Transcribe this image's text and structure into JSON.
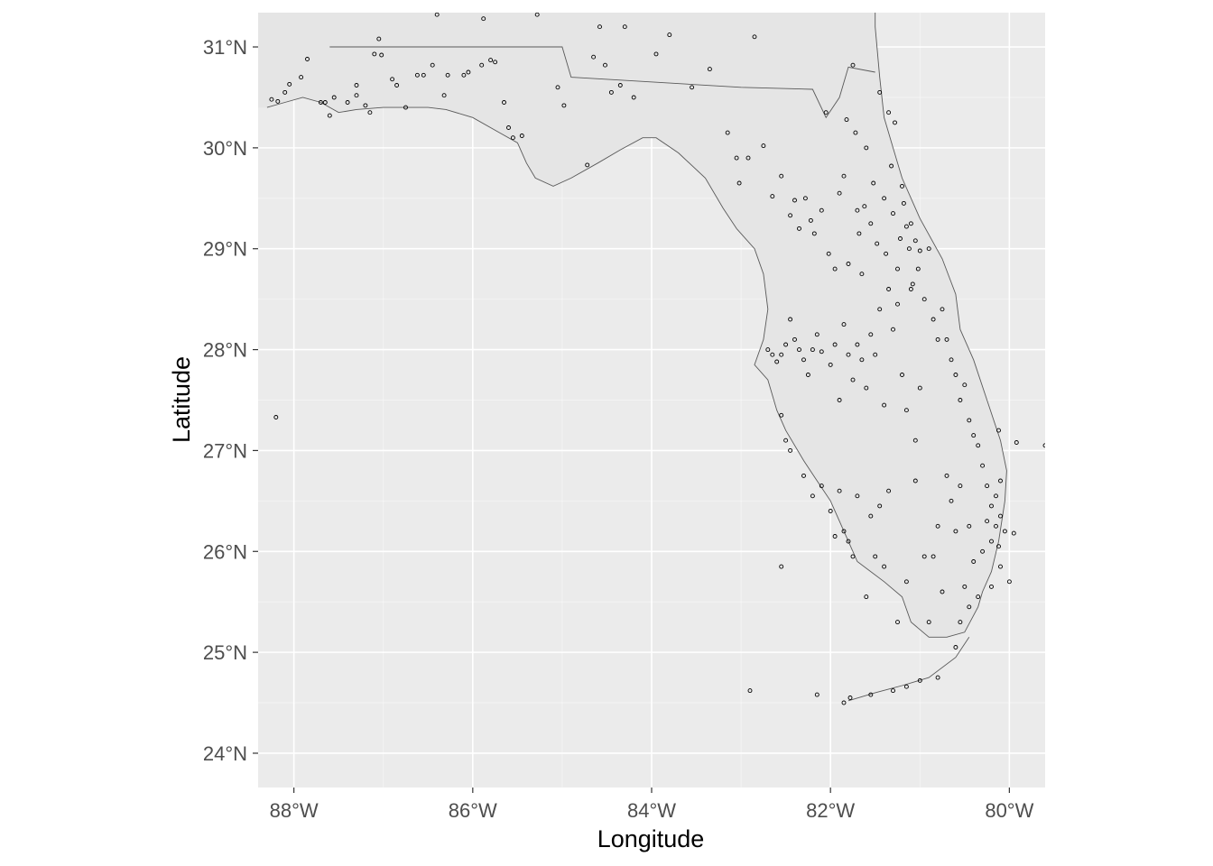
{
  "chart_data": {
    "type": "scatter",
    "title": "",
    "xlabel": "Longitude",
    "ylabel": "Latitude",
    "xlim": [
      -88.4,
      -79.6
    ],
    "ylim": [
      23.66,
      31.34
    ],
    "grid": true,
    "x_ticks": [
      {
        "value": -88,
        "label": "88°W"
      },
      {
        "value": -86,
        "label": "86°W"
      },
      {
        "value": -84,
        "label": "84°W"
      },
      {
        "value": -82,
        "label": "82°W"
      },
      {
        "value": -80,
        "label": "80°W"
      }
    ],
    "y_ticks": [
      {
        "value": 24,
        "label": "24°N"
      },
      {
        "value": 25,
        "label": "25°N"
      },
      {
        "value": 26,
        "label": "26°N"
      },
      {
        "value": 27,
        "label": "27°N"
      },
      {
        "value": 28,
        "label": "28°N"
      },
      {
        "value": 29,
        "label": "29°N"
      },
      {
        "value": 30,
        "label": "30°N"
      },
      {
        "value": 31,
        "label": "31°N"
      }
    ],
    "colors": {
      "panel": "#ebebeb",
      "grid": "#ffffff",
      "land": "#e5e5e5",
      "border": "#595959",
      "point": "#000000"
    },
    "boundaries": [
      {
        "name": "state-border-al-fl",
        "coords": [
          [
            -87.6,
            31.0
          ],
          [
            -85.0,
            31.0
          ],
          [
            -84.9,
            30.7
          ],
          [
            -83.0,
            30.6
          ],
          [
            -82.2,
            30.58
          ],
          [
            -82.05,
            30.3
          ],
          [
            -81.9,
            30.5
          ],
          [
            -81.8,
            30.8
          ],
          [
            -81.5,
            30.75
          ]
        ]
      }
    ],
    "coastlines": [
      {
        "name": "florida-coastline",
        "coords": [
          [
            -88.3,
            30.4
          ],
          [
            -88.1,
            30.45
          ],
          [
            -87.9,
            30.5
          ],
          [
            -87.7,
            30.45
          ],
          [
            -87.5,
            30.35
          ],
          [
            -87.3,
            30.38
          ],
          [
            -87.0,
            30.4
          ],
          [
            -86.5,
            30.4
          ],
          [
            -86.3,
            30.38
          ],
          [
            -86.0,
            30.3
          ],
          [
            -85.7,
            30.15
          ],
          [
            -85.5,
            30.05
          ],
          [
            -85.4,
            29.85
          ],
          [
            -85.3,
            29.7
          ],
          [
            -85.1,
            29.62
          ],
          [
            -84.9,
            29.7
          ],
          [
            -84.6,
            29.85
          ],
          [
            -84.35,
            29.98
          ],
          [
            -84.1,
            30.1
          ],
          [
            -83.95,
            30.1
          ],
          [
            -83.7,
            29.95
          ],
          [
            -83.4,
            29.7
          ],
          [
            -83.2,
            29.4
          ],
          [
            -83.05,
            29.2
          ],
          [
            -82.85,
            29.0
          ],
          [
            -82.75,
            28.75
          ],
          [
            -82.7,
            28.4
          ],
          [
            -82.75,
            28.1
          ],
          [
            -82.85,
            27.85
          ],
          [
            -82.7,
            27.7
          ],
          [
            -82.6,
            27.4
          ],
          [
            -82.5,
            27.2
          ],
          [
            -82.3,
            26.9
          ],
          [
            -82.15,
            26.7
          ],
          [
            -82.0,
            26.5
          ],
          [
            -81.9,
            26.3
          ],
          [
            -81.8,
            26.1
          ],
          [
            -81.7,
            25.9
          ],
          [
            -81.4,
            25.7
          ],
          [
            -81.2,
            25.55
          ],
          [
            -81.1,
            25.3
          ],
          [
            -80.9,
            25.15
          ],
          [
            -80.7,
            25.15
          ],
          [
            -80.5,
            25.2
          ],
          [
            -80.35,
            25.45
          ],
          [
            -80.3,
            25.6
          ],
          [
            -80.2,
            25.8
          ],
          [
            -80.12,
            26.1
          ],
          [
            -80.05,
            26.5
          ],
          [
            -80.03,
            26.8
          ],
          [
            -80.1,
            27.1
          ],
          [
            -80.25,
            27.5
          ],
          [
            -80.4,
            27.9
          ],
          [
            -80.55,
            28.2
          ],
          [
            -80.6,
            28.55
          ],
          [
            -80.75,
            28.9
          ],
          [
            -81.0,
            29.3
          ],
          [
            -81.2,
            29.7
          ],
          [
            -81.3,
            30.0
          ],
          [
            -81.4,
            30.3
          ],
          [
            -81.45,
            30.7
          ],
          [
            -81.5,
            31.2
          ],
          [
            -81.5,
            31.34
          ]
        ]
      },
      {
        "name": "florida-keys",
        "coords": [
          [
            -80.45,
            25.15
          ],
          [
            -80.6,
            24.95
          ],
          [
            -80.9,
            24.75
          ],
          [
            -81.2,
            24.67
          ],
          [
            -81.5,
            24.6
          ],
          [
            -81.8,
            24.52
          ]
        ]
      }
    ],
    "points": [
      [
        -88.25,
        30.48
      ],
      [
        -88.18,
        30.46
      ],
      [
        -88.1,
        30.55
      ],
      [
        -88.05,
        30.63
      ],
      [
        -87.92,
        30.7
      ],
      [
        -87.85,
        30.88
      ],
      [
        -87.7,
        30.45
      ],
      [
        -87.65,
        30.45
      ],
      [
        -87.6,
        30.32
      ],
      [
        -87.55,
        30.5
      ],
      [
        -87.4,
        30.45
      ],
      [
        -87.3,
        30.62
      ],
      [
        -87.3,
        30.52
      ],
      [
        -87.2,
        30.42
      ],
      [
        -87.15,
        30.35
      ],
      [
        -87.1,
        30.93
      ],
      [
        -87.05,
        31.08
      ],
      [
        -87.02,
        30.92
      ],
      [
        -86.9,
        30.68
      ],
      [
        -86.85,
        30.62
      ],
      [
        -86.75,
        30.4
      ],
      [
        -86.62,
        30.72
      ],
      [
        -86.55,
        30.72
      ],
      [
        -86.4,
        31.32
      ],
      [
        -86.45,
        30.82
      ],
      [
        -86.32,
        30.52
      ],
      [
        -86.28,
        30.72
      ],
      [
        -86.1,
        30.72
      ],
      [
        -86.05,
        30.75
      ],
      [
        -85.9,
        30.82
      ],
      [
        -85.88,
        31.28
      ],
      [
        -85.8,
        30.87
      ],
      [
        -85.75,
        30.85
      ],
      [
        -85.65,
        30.45
      ],
      [
        -85.6,
        30.2
      ],
      [
        -85.55,
        30.1
      ],
      [
        -85.45,
        30.12
      ],
      [
        -85.28,
        31.32
      ],
      [
        -85.05,
        30.6
      ],
      [
        -84.98,
        30.42
      ],
      [
        -84.72,
        29.83
      ],
      [
        -84.65,
        30.9
      ],
      [
        -84.58,
        31.2
      ],
      [
        -84.52,
        30.82
      ],
      [
        -84.45,
        30.55
      ],
      [
        -84.35,
        30.62
      ],
      [
        -84.3,
        31.2
      ],
      [
        -84.2,
        30.5
      ],
      [
        -83.95,
        30.93
      ],
      [
        -83.8,
        31.12
      ],
      [
        -83.55,
        30.6
      ],
      [
        -83.35,
        30.78
      ],
      [
        -83.15,
        30.15
      ],
      [
        -83.05,
        29.9
      ],
      [
        -83.02,
        29.65
      ],
      [
        -82.92,
        29.9
      ],
      [
        -82.85,
        31.1
      ],
      [
        -82.75,
        30.02
      ],
      [
        -82.65,
        29.52
      ],
      [
        -82.55,
        29.72
      ],
      [
        -82.45,
        29.33
      ],
      [
        -82.4,
        29.48
      ],
      [
        -82.35,
        29.2
      ],
      [
        -82.28,
        29.5
      ],
      [
        -82.22,
        29.28
      ],
      [
        -82.18,
        29.15
      ],
      [
        -82.1,
        29.38
      ],
      [
        -82.05,
        30.35
      ],
      [
        -82.02,
        28.95
      ],
      [
        -81.95,
        28.8
      ],
      [
        -81.9,
        29.55
      ],
      [
        -81.85,
        29.72
      ],
      [
        -81.82,
        30.28
      ],
      [
        -81.8,
        28.85
      ],
      [
        -81.75,
        30.82
      ],
      [
        -81.72,
        30.15
      ],
      [
        -81.7,
        29.38
      ],
      [
        -81.68,
        29.15
      ],
      [
        -81.65,
        28.75
      ],
      [
        -81.62,
        29.42
      ],
      [
        -81.6,
        30.0
      ],
      [
        -81.55,
        29.25
      ],
      [
        -81.52,
        29.65
      ],
      [
        -81.48,
        29.05
      ],
      [
        -81.45,
        30.55
      ],
      [
        -81.4,
        29.5
      ],
      [
        -81.38,
        28.95
      ],
      [
        -81.35,
        30.35
      ],
      [
        -81.32,
        29.82
      ],
      [
        -81.3,
        29.35
      ],
      [
        -81.28,
        30.25
      ],
      [
        -81.25,
        28.8
      ],
      [
        -81.22,
        29.1
      ],
      [
        -81.2,
        29.62
      ],
      [
        -81.18,
        29.45
      ],
      [
        -81.15,
        29.22
      ],
      [
        -81.12,
        29.0
      ],
      [
        -81.1,
        29.25
      ],
      [
        -81.08,
        28.65
      ],
      [
        -81.05,
        29.08
      ],
      [
        -81.02,
        28.8
      ],
      [
        -81.0,
        28.98
      ],
      [
        -80.95,
        28.5
      ],
      [
        -80.9,
        29.0
      ],
      [
        -80.85,
        28.3
      ],
      [
        -80.8,
        28.1
      ],
      [
        -80.75,
        28.4
      ],
      [
        -80.7,
        28.1
      ],
      [
        -80.65,
        27.9
      ],
      [
        -80.6,
        27.75
      ],
      [
        -80.55,
        27.5
      ],
      [
        -80.5,
        27.65
      ],
      [
        -80.45,
        27.3
      ],
      [
        -80.4,
        27.15
      ],
      [
        -80.35,
        27.05
      ],
      [
        -80.3,
        26.85
      ],
      [
        -80.25,
        26.65
      ],
      [
        -80.2,
        26.45
      ],
      [
        -80.15,
        26.25
      ],
      [
        -80.12,
        26.05
      ],
      [
        -80.1,
        25.85
      ],
      [
        -80.2,
        25.65
      ],
      [
        -80.35,
        25.55
      ],
      [
        -80.45,
        25.45
      ],
      [
        -80.55,
        25.3
      ],
      [
        -80.6,
        25.05
      ],
      [
        -80.8,
        24.75
      ],
      [
        -81.0,
        24.72
      ],
      [
        -81.15,
        24.66
      ],
      [
        -81.3,
        24.62
      ],
      [
        -81.55,
        24.58
      ],
      [
        -81.78,
        24.55
      ],
      [
        -82.7,
        28.0
      ],
      [
        -82.65,
        27.95
      ],
      [
        -82.6,
        27.88
      ],
      [
        -82.55,
        27.95
      ],
      [
        -82.5,
        28.05
      ],
      [
        -82.45,
        28.3
      ],
      [
        -82.4,
        28.1
      ],
      [
        -82.35,
        28.0
      ],
      [
        -82.3,
        27.9
      ],
      [
        -82.25,
        27.75
      ],
      [
        -82.2,
        28.0
      ],
      [
        -82.15,
        28.15
      ],
      [
        -82.1,
        27.98
      ],
      [
        -82.0,
        27.85
      ],
      [
        -81.95,
        28.05
      ],
      [
        -81.9,
        27.5
      ],
      [
        -81.85,
        28.25
      ],
      [
        -81.8,
        27.95
      ],
      [
        -81.75,
        27.7
      ],
      [
        -81.7,
        28.05
      ],
      [
        -81.65,
        27.9
      ],
      [
        -81.6,
        27.62
      ],
      [
        -81.55,
        28.15
      ],
      [
        -81.5,
        27.95
      ],
      [
        -81.45,
        28.4
      ],
      [
        -81.4,
        27.45
      ],
      [
        -81.35,
        28.6
      ],
      [
        -81.3,
        28.2
      ],
      [
        -81.25,
        28.45
      ],
      [
        -81.2,
        27.75
      ],
      [
        -81.15,
        27.4
      ],
      [
        -81.1,
        28.6
      ],
      [
        -81.05,
        27.1
      ],
      [
        -81.0,
        27.62
      ],
      [
        -82.55,
        27.35
      ],
      [
        -82.5,
        27.1
      ],
      [
        -82.45,
        27.0
      ],
      [
        -82.3,
        26.75
      ],
      [
        -82.2,
        26.55
      ],
      [
        -82.1,
        26.65
      ],
      [
        -82.0,
        26.4
      ],
      [
        -81.95,
        26.15
      ],
      [
        -81.9,
        26.6
      ],
      [
        -81.85,
        26.2
      ],
      [
        -81.8,
        26.1
      ],
      [
        -81.75,
        25.95
      ],
      [
        -81.7,
        26.55
      ],
      [
        -81.6,
        25.55
      ],
      [
        -81.55,
        26.35
      ],
      [
        -81.5,
        25.95
      ],
      [
        -81.45,
        26.45
      ],
      [
        -81.4,
        25.85
      ],
      [
        -81.35,
        26.6
      ],
      [
        -81.25,
        25.3
      ],
      [
        -81.15,
        25.7
      ],
      [
        -81.05,
        26.7
      ],
      [
        -80.95,
        25.95
      ],
      [
        -80.9,
        25.3
      ],
      [
        -80.85,
        25.95
      ],
      [
        -80.8,
        26.25
      ],
      [
        -80.75,
        25.6
      ],
      [
        -80.7,
        26.75
      ],
      [
        -80.65,
        26.5
      ],
      [
        -80.6,
        26.2
      ],
      [
        -80.55,
        26.65
      ],
      [
        -80.5,
        25.65
      ],
      [
        -80.45,
        26.25
      ],
      [
        -80.4,
        25.9
      ],
      [
        -80.3,
        26.0
      ],
      [
        -80.25,
        26.3
      ],
      [
        -80.2,
        26.1
      ],
      [
        -80.15,
        26.55
      ],
      [
        -80.1,
        26.35
      ],
      [
        -80.1,
        26.7
      ],
      [
        -80.12,
        27.2
      ],
      [
        -80.05,
        26.2
      ],
      [
        -80.0,
        25.7
      ],
      [
        -79.95,
        26.18
      ],
      [
        -79.92,
        27.08
      ],
      [
        -79.6,
        27.05
      ],
      [
        -82.9,
        24.62
      ],
      [
        -82.55,
        25.85
      ],
      [
        -82.15,
        24.58
      ],
      [
        -81.85,
        24.5
      ],
      [
        -88.2,
        27.33
      ]
    ]
  }
}
